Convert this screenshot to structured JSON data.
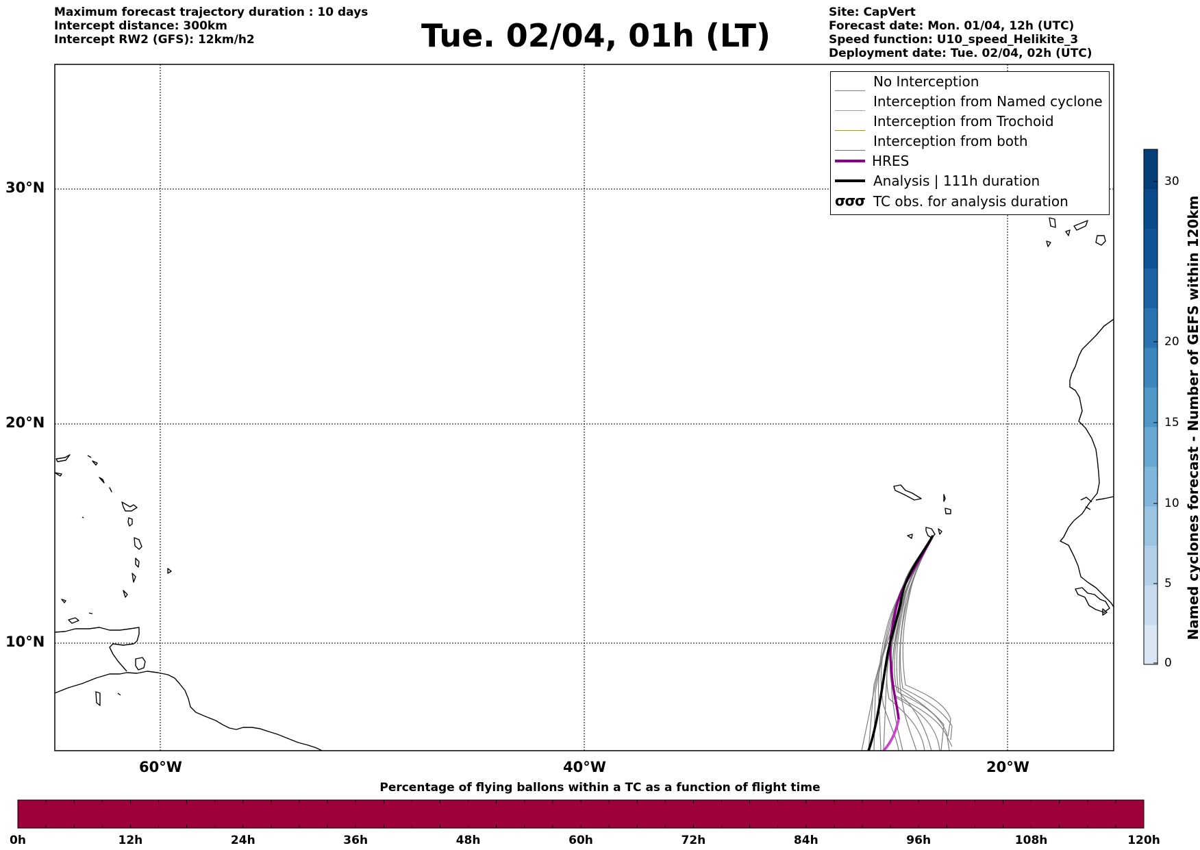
{
  "header": {
    "left": [
      "Maximum forecast trajectory duration : 10 days",
      "Intercept distance: 300km",
      "Intercept RW2 (GFS):  12km/h2"
    ],
    "title": "Tue. 02/04, 01h (LT)",
    "right": [
      "Site: CapVert",
      "Forecast date: Mon. 01/04, 12h (UTC)",
      "Speed function: U10_speed_Helikite_3",
      "Deployment date: Tue. 02/04, 02h (UTC)"
    ]
  },
  "map": {
    "lat_labels": [
      "30°N",
      "20°N",
      "10°N"
    ],
    "lon_labels": [
      "60°W",
      "40°W",
      "20°W"
    ],
    "gridlines": "dotted"
  },
  "legend": {
    "items": [
      {
        "label": "No Interception",
        "color": "#808080",
        "style": "thin"
      },
      {
        "label": "Interception from Named cyclone",
        "color": "#f4844c",
        "style": "thin"
      },
      {
        "label": "Interception from Trochoid",
        "color": "#a09040",
        "style": "thin"
      },
      {
        "label": "Interception from both",
        "color": "#3a9a3a",
        "style": "thin"
      },
      {
        "label": "HRES",
        "color": "#8b008b",
        "style": "thick"
      },
      {
        "label": "Analysis | 111h duration",
        "color": "#000000",
        "style": "thick"
      },
      {
        "label": "TC obs. for analysis duration",
        "icon": "cyclone-symbols-icon",
        "glyph": "σσσ"
      }
    ]
  },
  "colorbar": {
    "label": "Named cyclones forecast - Number of GEFS within 120km",
    "ticks": [
      "0",
      "5",
      "10",
      "15",
      "20",
      "30"
    ],
    "colors": [
      "#dae6f4",
      "#c9dbef",
      "#b4d0e8",
      "#9ac4e1",
      "#7fb6da",
      "#67a8d3",
      "#4e97c8",
      "#3a86bd",
      "#2a74b1",
      "#1b63a4",
      "#0f5497",
      "#084a8a",
      "#063f7a"
    ]
  },
  "timebar": {
    "title": "Percentage of flying ballons within a TC as a function of flight time",
    "fill_color": "#9e003a",
    "ticks": [
      "0h",
      "12h",
      "24h",
      "36h",
      "48h",
      "60h",
      "72h",
      "84h",
      "96h",
      "108h",
      "120h"
    ]
  }
}
